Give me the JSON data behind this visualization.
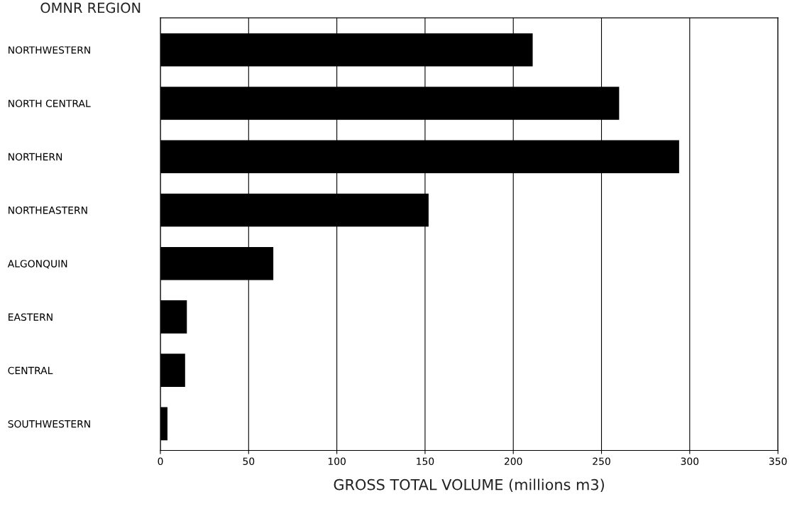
{
  "chart_data": {
    "type": "bar",
    "orientation": "horizontal",
    "ylabel": "OMNR REGION",
    "xlabel": "GROSS TOTAL VOLUME (millions m3)",
    "categories": [
      "NORTHWESTERN",
      "NORTH CENTRAL",
      "NORTHERN",
      "NORTHEASTERN",
      "ALGONQUIN",
      "EASTERN",
      "CENTRAL",
      "SOUTHWESTERN"
    ],
    "values": [
      211,
      260,
      294,
      152,
      64,
      15,
      14,
      4
    ],
    "color": "#000000",
    "xlim": [
      0,
      350
    ],
    "xticks": [
      0,
      50,
      100,
      150,
      200,
      250,
      300,
      350
    ],
    "grid": "x",
    "legend": false
  }
}
